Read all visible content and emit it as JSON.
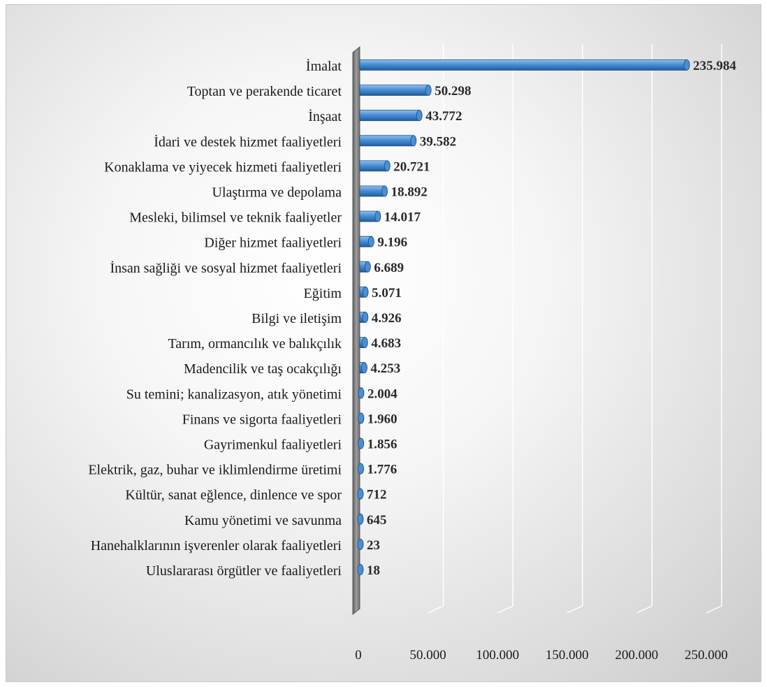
{
  "chart_data": {
    "type": "bar",
    "orientation": "horizontal",
    "categories": [
      "İmalat",
      "Toptan ve perakende ticaret",
      "İnşaat",
      "İdari ve destek hizmet faaliyetleri",
      "Konaklama ve yiyecek hizmeti faaliyetleri",
      "Ulaştırma ve depolama",
      "Mesleki, bilimsel ve teknik faaliyetler",
      "Diğer hizmet faaliyetleri",
      "İnsan sağliği ve sosyal hizmet faaliyetleri",
      "Eğitim",
      "Bilgi ve iletişim",
      "Tarım, ormancılık ve balıkçılık",
      "Madencilik ve taş ocakçılığı",
      "Su temini; kanalizasyon, atık yönetimi",
      "Finans ve sigorta faaliyetleri",
      "Gayrimenkul faaliyetleri",
      "Elektrik, gaz, buhar ve iklimlendirme üretimi",
      "Kültür, sanat eğlence, dinlence ve spor",
      "Kamu yönetimi ve savunma",
      "Hanehalklarının işverenler olarak faaliyetleri",
      "Uluslararası örgütler ve  faaliyetleri"
    ],
    "values": [
      235984,
      50298,
      43772,
      39582,
      20721,
      18892,
      14017,
      9196,
      6689,
      5071,
      4926,
      4683,
      4253,
      2004,
      1960,
      1856,
      1776,
      712,
      645,
      23,
      18
    ],
    "value_labels": [
      "235.984",
      "50.298",
      "43.772",
      "39.582",
      "20.721",
      "18.892",
      "14.017",
      "9.196",
      "6.689",
      "5.071",
      "4.926",
      "4.683",
      "4.253",
      "2.004",
      "1.960",
      "1.856",
      "1.776",
      "712",
      "645",
      "23",
      "18"
    ],
    "x_ticks": [
      0,
      50000,
      100000,
      150000,
      200000,
      250000
    ],
    "x_tick_labels": [
      "0",
      "50.000",
      "100.000",
      "150.000",
      "200.000",
      "250.000"
    ],
    "xlim": [
      0,
      250000
    ],
    "title": "",
    "xlabel": "",
    "ylabel": "",
    "grid": true,
    "legend": "none",
    "style": "3d-cylinder",
    "colors": {
      "bar_light": "#8fc1ee",
      "bar_mid": "#4a8fd4",
      "bar_dark": "#1f5e9e",
      "gridline": "#ffffff",
      "wall": "#7f7f7f"
    }
  }
}
